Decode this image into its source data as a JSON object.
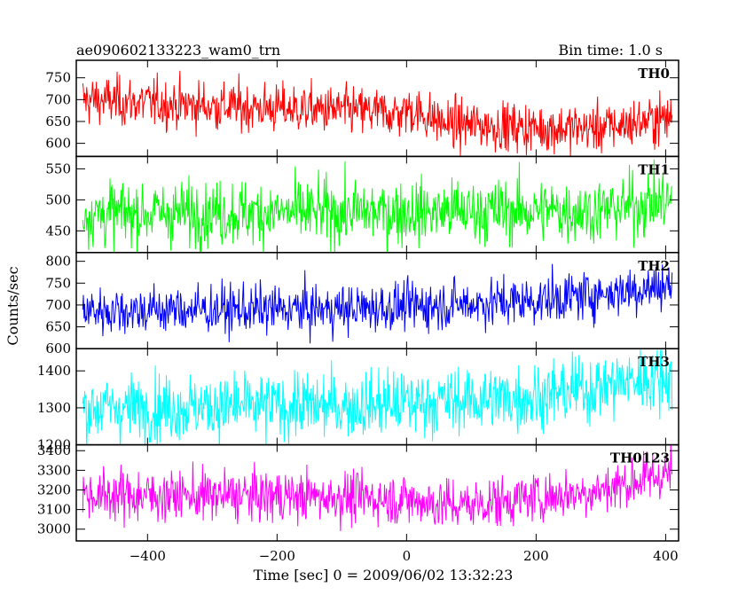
{
  "chart_data": {
    "type": "line",
    "title": "ae090602133223_wam0_trn",
    "bin_label": "Bin time: 1.0 s",
    "xlabel": "Time [sec] 0 = 2009/06/02 13:32:23",
    "ylabel": "Counts/sec",
    "xlim": [
      -510,
      420
    ],
    "x_ticks": [
      -400,
      -200,
      0,
      200,
      400
    ],
    "x_tick_labels": [
      "−400",
      "−200",
      "0",
      "200",
      "400"
    ],
    "x_step": 1,
    "grid": false,
    "legend": "none",
    "series": [
      {
        "name": "TH0",
        "color": "#ff0000",
        "ylim": [
          570,
          790
        ],
        "yticks": [
          600,
          650,
          700,
          750
        ],
        "ytick_labels": [
          "600",
          "650",
          "700",
          "750"
        ],
        "trend_x": [
          -500,
          -300,
          -100,
          -5,
          0,
          60,
          200,
          300,
          410
        ],
        "trend_y": [
          700,
          685,
          675,
          668,
          680,
          645,
          635,
          635,
          660
        ],
        "noise": 28
      },
      {
        "name": "TH1",
        "color": "#00ff00",
        "ylim": [
          415,
          570
        ],
        "yticks": [
          450,
          500,
          550
        ],
        "ytick_labels": [
          "450",
          "500",
          "550"
        ],
        "trend_x": [
          -500,
          -100,
          300,
          410
        ],
        "trend_y": [
          478,
          480,
          483,
          500
        ],
        "noise": 26
      },
      {
        "name": "TH2",
        "color": "#0000ff",
        "ylim": [
          600,
          820
        ],
        "yticks": [
          600,
          650,
          700,
          750,
          800
        ],
        "ytick_labels": [
          "600",
          "650",
          "700",
          "750",
          "800"
        ],
        "trend_x": [
          -500,
          -100,
          200,
          410
        ],
        "trend_y": [
          688,
          690,
          710,
          745
        ],
        "noise": 28
      },
      {
        "name": "TH3",
        "color": "#00ffff",
        "ylim": [
          1200,
          1460
        ],
        "yticks": [
          1200,
          1300,
          1400
        ],
        "ytick_labels": [
          "1200",
          "1300",
          "1400"
        ],
        "trend_x": [
          -500,
          -100,
          200,
          410
        ],
        "trend_y": [
          1300,
          1305,
          1330,
          1390
        ],
        "noise": 45
      },
      {
        "name": "TH0123",
        "color": "#ff00ff",
        "ylim": [
          2940,
          3430
        ],
        "yticks": [
          3000,
          3100,
          3200,
          3300,
          3400
        ],
        "ytick_labels": [
          "3000",
          "3100",
          "3200",
          "3300",
          "3400"
        ],
        "trend_x": [
          -500,
          -100,
          0,
          80,
          200,
          300,
          410
        ],
        "trend_y": [
          3175,
          3165,
          3150,
          3120,
          3160,
          3200,
          3290
        ],
        "noise": 65
      }
    ]
  }
}
